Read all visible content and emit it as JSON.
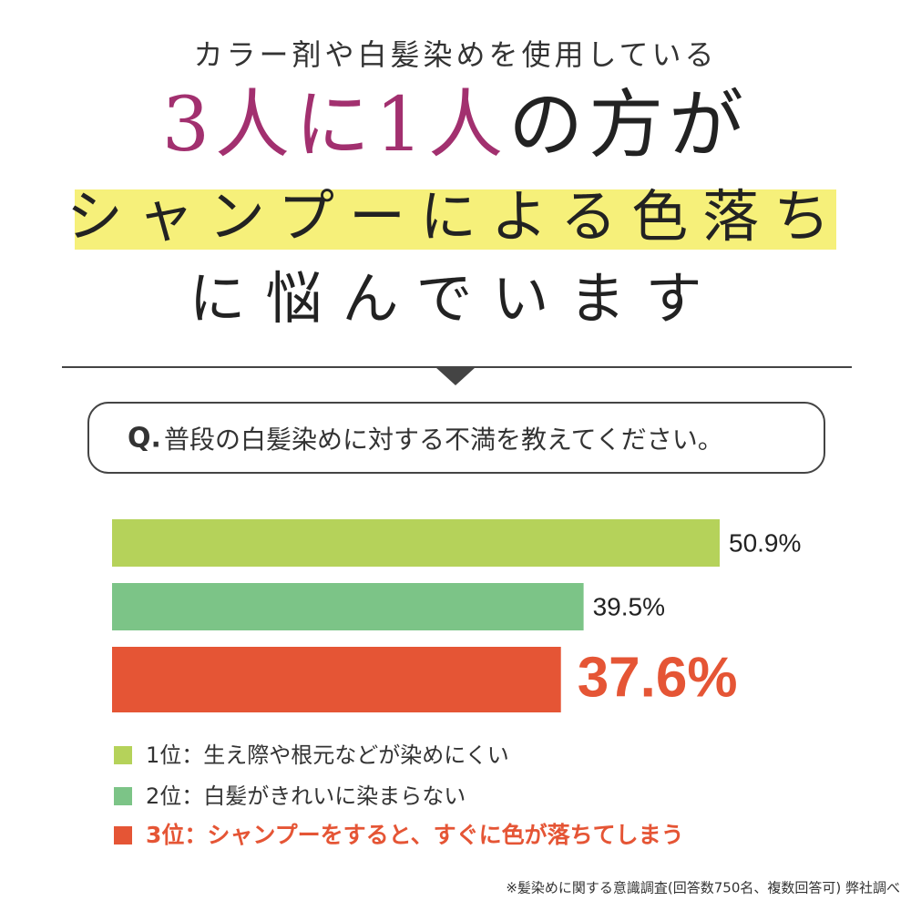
{
  "header": {
    "lead": "カラー剤や白髪染めを使用している",
    "headline_highlight": "3人に1人",
    "headline_rest": "の方が",
    "line2": "シャンプーによる色落ち",
    "line3": "に悩んでいます"
  },
  "question": {
    "prefix": "Q.",
    "text": "普段の白髪染めに対する不満を教えてください。"
  },
  "chart_data": {
    "type": "bar",
    "orientation": "horizontal",
    "categories": [
      "1位：生え際や根元などが染めにくい",
      "2位：白髪がきれいに染まらない",
      "3位：シャンプーをすると、すぐに色が落ちてしまう"
    ],
    "values": [
      50.9,
      39.5,
      37.6
    ],
    "value_labels": [
      "50.9%",
      "39.5%",
      "37.6%"
    ],
    "colors": [
      "#b5d25a",
      "#7cc487",
      "#e55535"
    ]
  },
  "footnote": "※髪染めに関する意識調査(回答数750名、複数回答可) 弊社調べ"
}
